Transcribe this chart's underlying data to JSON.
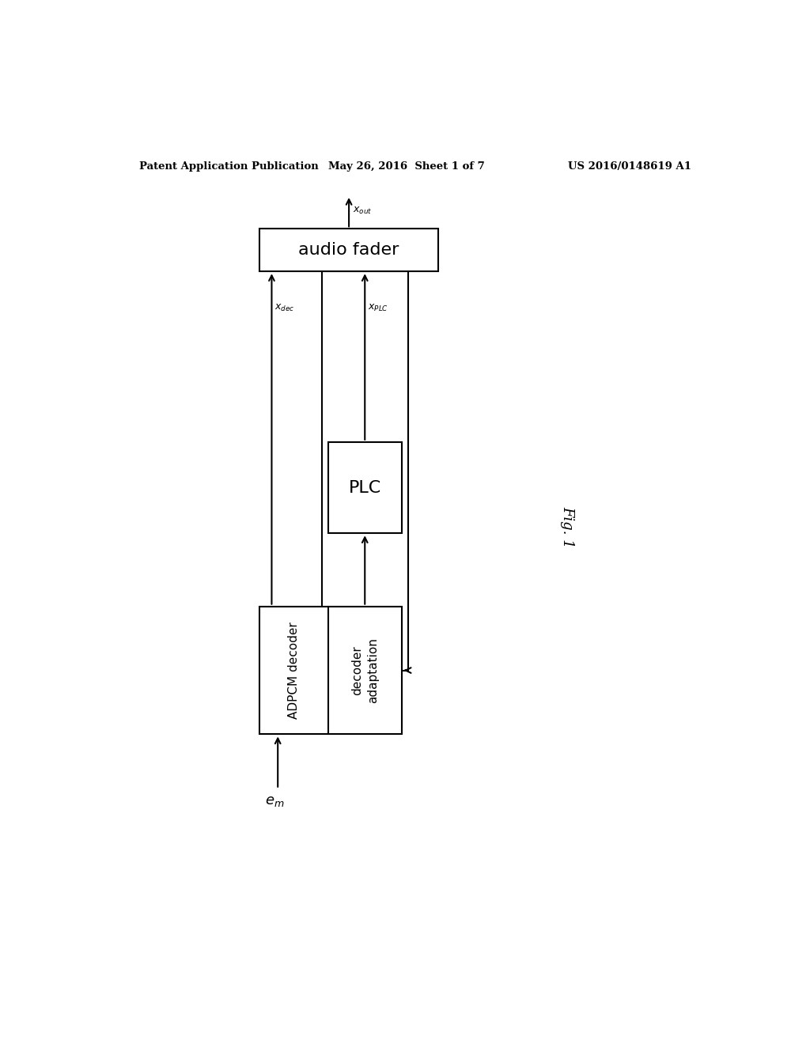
{
  "bg_color": "#ffffff",
  "header_left": "Patent Application Publication",
  "header_mid": "May 26, 2016  Sheet 1 of 7",
  "header_right": "US 2016/0148619 A1",
  "fig_label": "Fig. 1",
  "audio_fader_label": "audio fader",
  "plc_label": "PLC",
  "adpcm_label": "ADPCM decoder",
  "decoder_adapt_label": "decoder\nadaptation",
  "line_color": "#000000",
  "text_color": "#000000"
}
